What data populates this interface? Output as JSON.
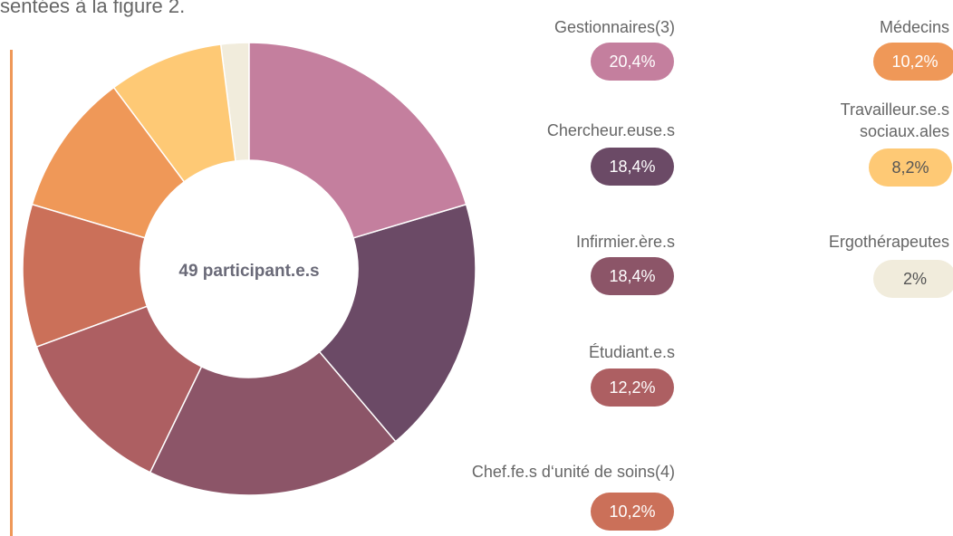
{
  "chart_data": {
    "type": "pie",
    "caption": "sentées à la figure 2.",
    "center_label": "49 participant.e.s",
    "categories": [
      "Gestionnaires(3)",
      "Chercheur.euse.s",
      "Infirmier.ère.s",
      "Étudiant.e.s",
      "Chef.fe.s d‘unité de soins(4)",
      "Médecins",
      "Travailleur.se.s sociaux.ales",
      "Ergothérapeutes"
    ],
    "values": [
      20.4,
      18.4,
      18.4,
      12.2,
      10.2,
      10.2,
      8.2,
      2
    ],
    "value_labels": [
      "20,4%",
      "18,4%",
      "18,4%",
      "12,2%",
      "10,2%",
      "10,2%",
      "8,2%",
      "2%"
    ],
    "colors": [
      "#c47f9e",
      "#6b4a66",
      "#8c5568",
      "#ad5f62",
      "#cb7059",
      "#ef9858",
      "#fec975",
      "#f1ecdc"
    ]
  }
}
